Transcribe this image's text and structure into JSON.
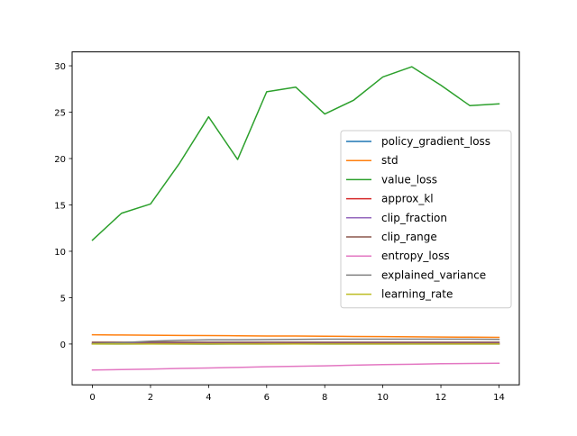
{
  "chart_data": {
    "type": "line",
    "title": "",
    "xlabel": "",
    "ylabel": "",
    "xlim": [
      -0.7,
      14.7
    ],
    "ylim": [
      -4.4,
      31.5
    ],
    "xticks": [
      0,
      2,
      4,
      6,
      8,
      10,
      12,
      14
    ],
    "yticks": [
      0,
      5,
      10,
      15,
      20,
      25,
      30
    ],
    "grid": false,
    "legend_position": "center-right",
    "x": [
      0,
      1,
      2,
      3,
      4,
      5,
      6,
      7,
      8,
      9,
      10,
      11,
      12,
      13,
      14
    ],
    "series": [
      {
        "name": "policy_gradient_loss",
        "color": "#1f77b4",
        "values": [
          0.01,
          0.0,
          0.01,
          0.0,
          -0.01,
          0.0,
          0.0,
          0.01,
          0.0,
          0.0,
          0.0,
          0.0,
          0.0,
          0.0,
          0.0
        ]
      },
      {
        "name": "std",
        "color": "#ff7f0e",
        "values": [
          1.0,
          0.97,
          0.95,
          0.93,
          0.91,
          0.89,
          0.87,
          0.86,
          0.84,
          0.82,
          0.8,
          0.78,
          0.76,
          0.74,
          0.72
        ]
      },
      {
        "name": "value_loss",
        "color": "#2ca02c",
        "values": [
          11.2,
          14.1,
          15.1,
          19.5,
          24.5,
          19.9,
          27.2,
          27.7,
          24.8,
          26.3,
          28.8,
          29.9,
          27.9,
          25.7,
          25.9
        ]
      },
      {
        "name": "approx_kl",
        "color": "#d62728",
        "values": [
          0.01,
          0.01,
          0.01,
          0.02,
          0.02,
          0.01,
          0.02,
          0.02,
          0.01,
          0.01,
          0.02,
          0.01,
          0.02,
          0.01,
          0.01
        ]
      },
      {
        "name": "clip_fraction",
        "color": "#9467bd",
        "values": [
          0.1,
          0.12,
          0.14,
          0.16,
          0.15,
          0.13,
          0.17,
          0.16,
          0.14,
          0.15,
          0.16,
          0.14,
          0.15,
          0.16,
          0.15
        ]
      },
      {
        "name": "clip_range",
        "color": "#8c564b",
        "values": [
          0.2,
          0.2,
          0.2,
          0.2,
          0.2,
          0.2,
          0.2,
          0.2,
          0.2,
          0.2,
          0.2,
          0.2,
          0.2,
          0.2,
          0.2
        ]
      },
      {
        "name": "entropy_loss",
        "color": "#e377c2",
        "values": [
          -2.8,
          -2.75,
          -2.7,
          -2.63,
          -2.58,
          -2.52,
          -2.45,
          -2.4,
          -2.35,
          -2.28,
          -2.22,
          -2.18,
          -2.12,
          -2.1,
          -2.07
        ]
      },
      {
        "name": "explained_variance",
        "color": "#7f7f7f",
        "values": [
          0.05,
          0.15,
          0.3,
          0.4,
          0.45,
          0.45,
          0.48,
          0.5,
          0.52,
          0.52,
          0.53,
          0.52,
          0.53,
          0.52,
          0.5
        ]
      },
      {
        "name": "learning_rate",
        "color": "#bcbd22",
        "values": [
          0.0003,
          0.0003,
          0.0003,
          0.0003,
          0.0003,
          0.0003,
          0.0003,
          0.0003,
          0.0003,
          0.0003,
          0.0003,
          0.0003,
          0.0003,
          0.0003,
          0.0003
        ]
      }
    ]
  }
}
